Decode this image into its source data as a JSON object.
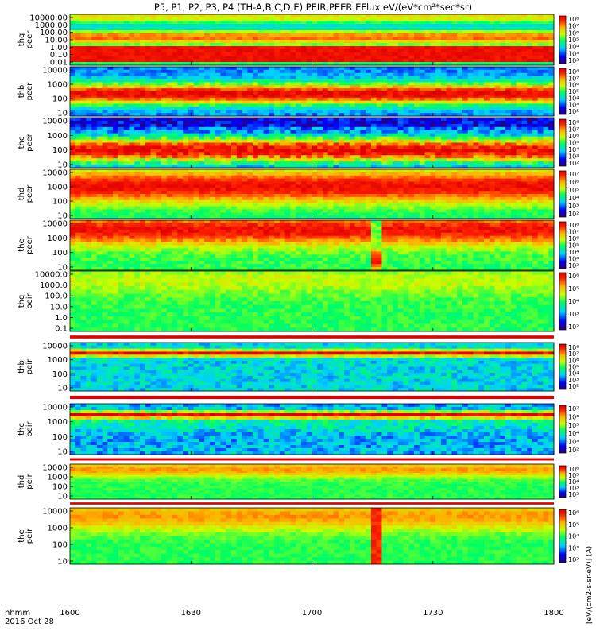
{
  "chart_data": {
    "type": "heatmap",
    "title": "P5, P1, P2, P3, P4 (TH-A,B,C,D,E) PEIR,PEER EFlux eV/(eV*cm²*sec*sr)",
    "date_label": "2016 Oct 28",
    "time_label": "hhmm",
    "x_ticks": [
      "1600",
      "1630",
      "1700",
      "1730",
      "1800"
    ],
    "x_range": [
      "16:00",
      "18:00"
    ],
    "colorbar_units": "[eV/(cm2-s-sr-eV)] (A)",
    "panels": [
      {
        "name": "thg peer",
        "ylabel": [
          "thg",
          "peer"
        ],
        "y_ticks": [
          "10000.00",
          "1000.00",
          "100.00",
          "10.00",
          "1.00",
          "0.10",
          "0.01"
        ],
        "colorbar_ticks": [
          "10⁸",
          "10⁷",
          "10⁶",
          "10⁵",
          "10⁴",
          "10³",
          "10²"
        ],
        "description": "high flux band below 10 eV, moderate flux 10-1000 eV"
      },
      {
        "name": "thb peer",
        "ylabel": [
          "thb",
          "peer"
        ],
        "y_ticks": [
          "10000",
          "1000",
          "100",
          "10"
        ],
        "colorbar_ticks": [
          "10⁸",
          "10⁷",
          "10⁶",
          "10⁵",
          "10⁴",
          "10³",
          "10²"
        ],
        "description": "peak flux near 100 eV, low flux above 1000 eV"
      },
      {
        "name": "thc peer",
        "ylabel": [
          "thc",
          "peer"
        ],
        "y_ticks": [
          "10000",
          "1000",
          "100",
          "10"
        ],
        "colorbar_ticks": [
          "10⁸",
          "10⁷",
          "10⁶",
          "10⁵",
          "10⁴",
          "10³",
          "10²"
        ],
        "description": "peak flux 20-200 eV, noisy low flux above 1000 eV"
      },
      {
        "name": "thd peer",
        "ylabel": [
          "thd",
          "peer"
        ],
        "y_ticks": [
          "10000",
          "1000",
          "100",
          "10"
        ],
        "colorbar_ticks": [
          "10⁷",
          "10⁶",
          "10⁵",
          "10⁴",
          "10³",
          "10²"
        ],
        "description": "broad high flux 100-5000 eV"
      },
      {
        "name": "the peer",
        "ylabel": [
          "the",
          "peer"
        ],
        "y_ticks": [
          "10000",
          "1000",
          "100",
          "10"
        ],
        "colorbar_ticks": [
          "10⁸",
          "10⁷",
          "10⁶",
          "10⁵",
          "10⁴",
          "10³",
          "10²"
        ],
        "description": "high flux above 300 eV, disturbance near 17:15"
      },
      {
        "name": "thg peir",
        "ylabel": [
          "thg",
          "peir"
        ],
        "y_ticks": [
          "10000.0",
          "1000.0",
          "100.0",
          "10.0",
          "1.0",
          "0.1"
        ],
        "colorbar_ticks": [
          "10⁶",
          "10⁵",
          "10⁴",
          "10³",
          "10²"
        ],
        "description": "moderate flux across energies"
      },
      {
        "name": "thb peir",
        "ylabel": [
          "thb",
          "peir"
        ],
        "y_ticks": [
          "10000",
          "1000",
          "100",
          "10"
        ],
        "colorbar_ticks": [
          "10⁸",
          "10⁷",
          "10⁶",
          "10⁵",
          "10⁴",
          "10³",
          "10²"
        ],
        "description": "narrow high flux band near 2000-3000 eV"
      },
      {
        "name": "thc peir",
        "ylabel": [
          "thc",
          "peir"
        ],
        "y_ticks": [
          "10000",
          "1000",
          "100",
          "10"
        ],
        "colorbar_ticks": [
          "10⁷",
          "10⁶",
          "10⁵",
          "10⁴",
          "10³",
          "10²"
        ],
        "description": "narrow high flux band near 2000-3000 eV"
      },
      {
        "name": "thd peir",
        "ylabel": [
          "thd",
          "peir"
        ],
        "y_ticks": [
          "10000",
          "1000",
          "100",
          "10"
        ],
        "colorbar_ticks": [
          "10⁶",
          "10⁵",
          "10⁴",
          "10³",
          "10²"
        ],
        "description": "moderate flux with peak near 5000 eV"
      },
      {
        "name": "the peir",
        "ylabel": [
          "the",
          "peir"
        ],
        "y_ticks": [
          "10000",
          "1000",
          "100",
          "10"
        ],
        "colorbar_ticks": [
          "10⁶",
          "10⁵",
          "10⁴",
          "10³",
          "10²"
        ],
        "description": "moderate flux, disturbance near 17:15"
      }
    ]
  }
}
